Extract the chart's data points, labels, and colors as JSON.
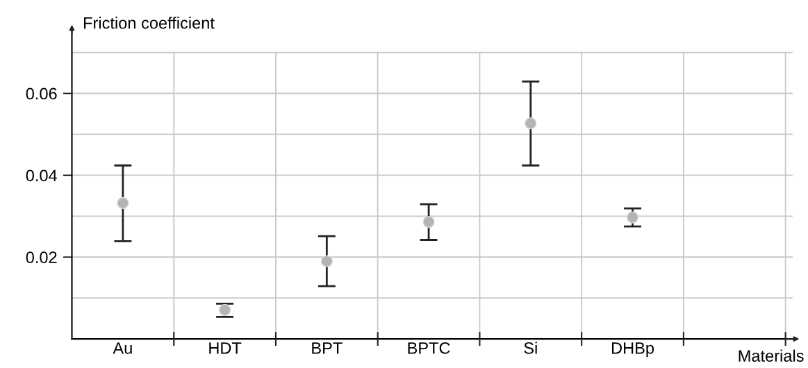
{
  "chart_data": {
    "type": "scatter",
    "xlabel": "Materials",
    "ylabel": "Friction coefficient",
    "categories": [
      "Au",
      "HDT",
      "BPT",
      "BPTC",
      "Si",
      "DHBp",
      null
    ],
    "series": [
      {
        "color": "#b4b4b4",
        "values": [
          0.0332,
          0.0071,
          0.019,
          0.0286,
          0.0527,
          0.0297,
          null
        ],
        "errors": [
          [
            0.0239,
            0.0424
          ],
          [
            0.0054,
            0.0086
          ],
          [
            0.0129,
            0.0251
          ],
          [
            0.0242,
            0.0329
          ],
          [
            0.0424,
            0.0629
          ],
          [
            0.0275,
            0.0319
          ],
          null
        ]
      }
    ],
    "marker": "circle",
    "ylim": [
      0,
      0.075
    ],
    "yticks": [
      {
        "value": 0.01,
        "label": null
      },
      0.02,
      {
        "value": 0.03,
        "label": null
      },
      0.04,
      {
        "value": 0.05,
        "label": null
      },
      0.06,
      {
        "value": 0.07,
        "label": null
      }
    ],
    "grid": true,
    "legend": false
  }
}
